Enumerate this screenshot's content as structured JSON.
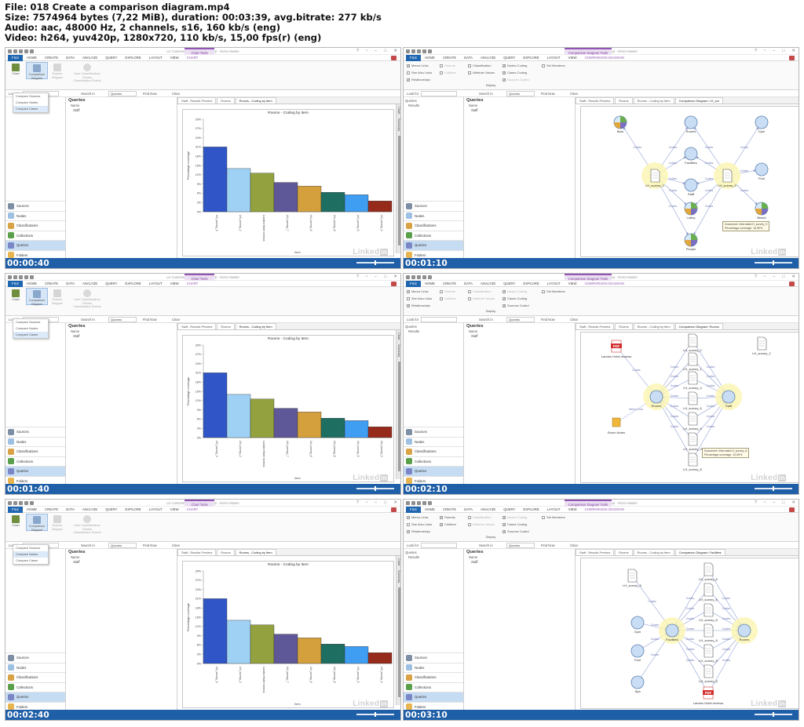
{
  "header": {
    "lines": [
      "File: 018 Create a comparison diagram.mp4",
      "Size: 7574964 bytes (7,22 MiB), duration: 00:03:39, avg.bitrate: 277 kb/s",
      "Audio: aac, 48000 Hz, 2 channels, s16, 160 kb/s (eng)",
      "Video: h264, yuv420p, 1280x720, 110 kb/s, 15,00 fps(r) (eng)"
    ]
  },
  "common": {
    "window_title": "LH Customer Experience2016.nvp - NVivo Master",
    "tabs": [
      "FILE",
      "HOME",
      "CREATE",
      "DATA",
      "ANALYZE",
      "QUERY",
      "EXPLORE",
      "LAYOUT",
      "VIEW"
    ],
    "find": {
      "look_for": "Look for",
      "search_in": "Search in",
      "scope": "Queries",
      "find_now": "Find Now",
      "clear": "Clear"
    },
    "nav_items": [
      "Sources",
      "Nodes",
      "Classifications",
      "Collections",
      "Queries",
      "Folders"
    ],
    "watermark": "Linked",
    "watermark_in": "in",
    "queries_title": "Queries",
    "name_col": "Name"
  },
  "chart_frame": {
    "ctx_tab": "Chart Tools",
    "ctx_subtab": "CHART",
    "ribbon": {
      "chart": "Chart",
      "comparison": "Comparison Diagram",
      "explore": "Explore Diagram",
      "user_class": "User Classifications Sheets",
      "class_sheets": "Classification Sheets"
    },
    "menu_items": [
      "Compare Sources",
      "Compare Nodes",
      "Compare Cases"
    ],
    "query_rows": [
      "Staff"
    ],
    "doc_tabs": [
      "Staff - Results Preview",
      "Rooms",
      "Rooms - Coding by Item"
    ],
    "side_tabs": [
      "Chart",
      "Summary"
    ]
  },
  "diagram_frame": {
    "ctx_tab": "Comparison Diagram Tools",
    "ctx_subtab": "COMPARISON DIAGRAM",
    "ribbon": {
      "memo_links": "Memo Links",
      "see_also": "See Also Links",
      "relationships": "Relationships",
      "parents": "Parents",
      "children": "Children",
      "classification": "Classification",
      "attr_values": "Attribute Values",
      "nodes_coding": "Nodes Coding",
      "cases_coding": "Cases Coding",
      "sources_coded": "Sources Coded",
      "set_members": "Set Members",
      "display": "Display"
    },
    "nav_tree": [
      "Queries",
      "Results"
    ],
    "query_rows": [
      "Staff"
    ],
    "tabs_common": [
      "Staff - Results Preview",
      "Rooms",
      "Rooms - Coding by Item"
    ]
  },
  "frames": [
    {
      "timestamp": "00:00:40",
      "kind": "chart",
      "menu_highlight": 2,
      "chart_data": {
        "type": "bar",
        "title": "Rooms - Coding by Item",
        "xlabel": "Item",
        "ylabel": "Percentage coverage",
        "ylim": [
          0,
          30
        ],
        "ticks": [
          "0%",
          "3%",
          "6%",
          "9%",
          "12%",
          "15%",
          "18%",
          "21%",
          "24%",
          "27%",
          "30%"
        ],
        "categories": [
          "LH_survey_3",
          "LH_survey_2",
          "Landon Hotel reviews",
          "LH_survey_7",
          "LH_survey_6",
          "LH_survey_8",
          "LH_survey_5",
          "LH_survey_4"
        ],
        "values": [
          21,
          14,
          12.5,
          9.5,
          8.3,
          6.3,
          5.5,
          3.5
        ],
        "colors": [
          "#2f55c7",
          "#9fd1f5",
          "#93a23e",
          "#5f5898",
          "#d4a03d",
          "#1f6e62",
          "#3f9df2",
          "#962b1c"
        ]
      }
    },
    {
      "timestamp": "00:01:10",
      "kind": "diagram",
      "active_tab": "Comparison Diagram: LH_sur",
      "tooltip": [
        "Document: Internals\\LH_survey_5",
        "Percentage coverage: 10.50%"
      ],
      "diagram": {
        "nodes": [
          "Bars",
          "Rooms",
          "Gym",
          "Facilities",
          "Pool",
          "Staff",
          "Lobby",
          "Beach",
          "People",
          "LH_survey_3",
          "LH_survey_5"
        ],
        "edge_label": "Codes"
      }
    },
    {
      "timestamp": "00:01:40",
      "kind": "chart",
      "menu_highlight": 2,
      "chart_data": {
        "type": "bar",
        "title": "Rooms - Coding by Item",
        "xlabel": "Item",
        "ylabel": "Percentage coverage",
        "ylim": [
          0,
          30
        ],
        "ticks": [
          "0%",
          "3%",
          "6%",
          "9%",
          "12%",
          "15%",
          "18%",
          "21%",
          "24%",
          "27%",
          "30%"
        ],
        "categories": [
          "LH_survey_3",
          "LH_survey_2",
          "Landon Hotel reviews",
          "LH_survey_7",
          "LH_survey_6",
          "LH_survey_8",
          "LH_survey_5",
          "LH_survey_4"
        ],
        "values": [
          21,
          14,
          12.5,
          9.5,
          8.3,
          6.3,
          5.5,
          3.5
        ],
        "colors": [
          "#2f55c7",
          "#9fd1f5",
          "#93a23e",
          "#5f5898",
          "#d4a03d",
          "#1f6e62",
          "#3f9df2",
          "#962b1c"
        ]
      }
    },
    {
      "timestamp": "00:02:10",
      "kind": "diagram",
      "active_tab": "Comparison Diagram: Rooms",
      "tooltip": [
        "Document: Internals\\LH_survey_8",
        "Percentage coverage: 10.50%"
      ],
      "diagram": {
        "nodes": [
          "Landon Hotel reviews",
          "Rooms",
          "Staff",
          "Room Notes",
          "LH_survey_2",
          "LH_survey_1",
          "LH_survey_4",
          "LH_survey_6",
          "LH_survey_5",
          "LH_survey_3",
          "LH_survey_8"
        ],
        "edge_label": "Codes",
        "memo_label": "Memo Link"
      }
    },
    {
      "timestamp": "00:02:40",
      "kind": "chart",
      "menu_highlight": 1,
      "chart_data": {
        "type": "bar",
        "title": "Rooms - Coding by Item",
        "xlabel": "Item",
        "ylabel": "Percentage coverage",
        "ylim": [
          0,
          30
        ],
        "ticks": [
          "0%",
          "3%",
          "6%",
          "9%",
          "12%",
          "15%",
          "18%",
          "21%",
          "24%",
          "27%",
          "30%"
        ],
        "categories": [
          "LH_survey_3",
          "LH_survey_2",
          "Landon Hotel reviews",
          "LH_survey_7",
          "LH_survey_6",
          "LH_survey_8",
          "LH_survey_5",
          "LH_survey_4"
        ],
        "values": [
          21,
          14,
          12.5,
          9.5,
          8.3,
          6.3,
          5.5,
          3.5
        ],
        "colors": [
          "#2f55c7",
          "#9fd1f5",
          "#93a23e",
          "#5f5898",
          "#d4a03d",
          "#1f6e62",
          "#3f9df2",
          "#962b1c"
        ]
      }
    },
    {
      "timestamp": "00:03:10",
      "kind": "diagram",
      "active_tab": "Comparison Diagram: Facilities",
      "tooltip": null,
      "diagram": {
        "nodes": [
          "LH_survey_8",
          "Gym",
          "Facilities",
          "Rooms",
          "Pool",
          "Spa",
          "Landon Hotel reviews"
        ],
        "edge_label": "Codes"
      }
    }
  ]
}
